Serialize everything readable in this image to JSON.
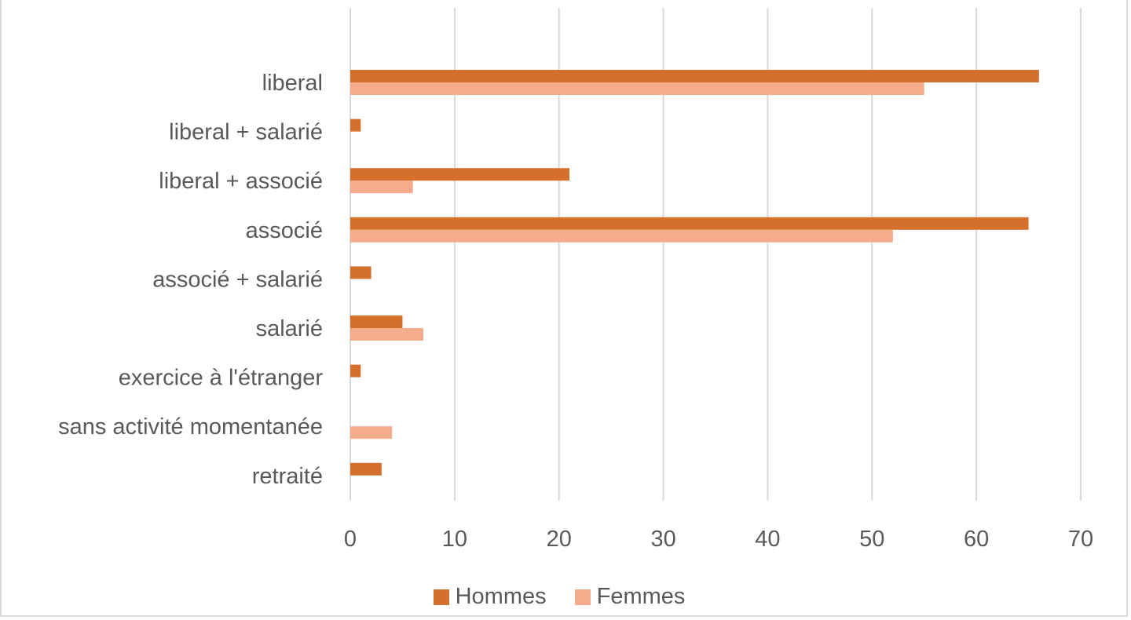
{
  "chart_data": {
    "type": "bar",
    "orientation": "horizontal",
    "categories": [
      "liberal",
      "liberal + salarié",
      "liberal + associé",
      "associé",
      "associé + salarié",
      "salarié",
      "exercice à l'étranger",
      "sans activité momentanée",
      "retraité"
    ],
    "series": [
      {
        "name": "Hommes",
        "color": "#d4702c",
        "values": [
          66,
          1,
          21,
          65,
          2,
          5,
          1,
          0,
          3
        ]
      },
      {
        "name": "Femmes",
        "color": "#f4ac8c",
        "values": [
          55,
          0,
          6,
          52,
          0,
          7,
          0,
          4,
          0
        ]
      }
    ],
    "xlim": [
      0,
      70
    ],
    "xticks": [
      "0",
      "10",
      "20",
      "30",
      "40",
      "50",
      "60",
      "70"
    ],
    "grid": true,
    "legend_position": "bottom"
  }
}
